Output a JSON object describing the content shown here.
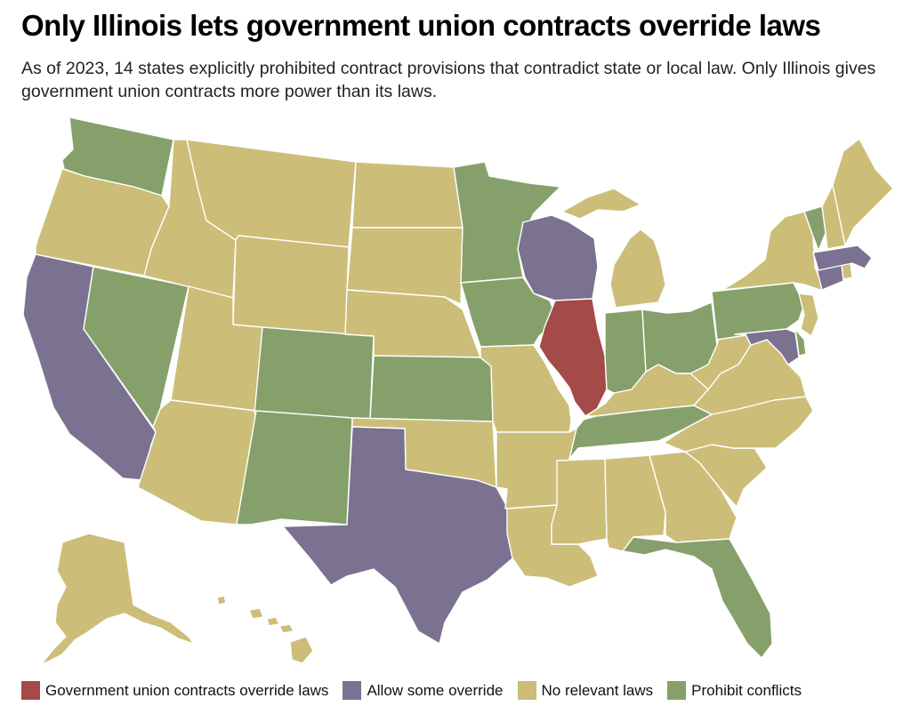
{
  "title": "Only Illinois lets government union contracts override laws",
  "subtitle": "As of 2023, 14 states explicitly prohibited contract provisions that contradict state or local law. Only Illinois gives government union contracts more power than its laws.",
  "colors": {
    "override": "#a44a48",
    "some": "#7b7190",
    "none": "#ccbd79",
    "prohibit": "#86a06b"
  },
  "legend": [
    {
      "key": "override",
      "label": "Government union contracts override laws"
    },
    {
      "key": "some",
      "label": "Allow some override"
    },
    {
      "key": "none",
      "label": "No relevant laws"
    },
    {
      "key": "prohibit",
      "label": "Prohibit conflicts"
    }
  ],
  "categories": {
    "override": [
      "IL"
    ],
    "some": [
      "CA",
      "TX",
      "WI",
      "CT",
      "MA",
      "MD"
    ],
    "prohibit": [
      "WA",
      "NV",
      "CO",
      "NM",
      "KS",
      "MN",
      "IA",
      "IN",
      "OH",
      "TN",
      "PA",
      "DE",
      "VT",
      "FL"
    ],
    "none": [
      "OR",
      "ID",
      "MT",
      "WY",
      "UT",
      "AZ",
      "ND",
      "SD",
      "NE",
      "OK",
      "MO",
      "AR",
      "LA",
      "MS",
      "AL",
      "GA",
      "SC",
      "NC",
      "VA",
      "WV",
      "KY",
      "MI",
      "NY",
      "NJ",
      "NH",
      "ME",
      "RI",
      "AK",
      "HI"
    ]
  }
}
